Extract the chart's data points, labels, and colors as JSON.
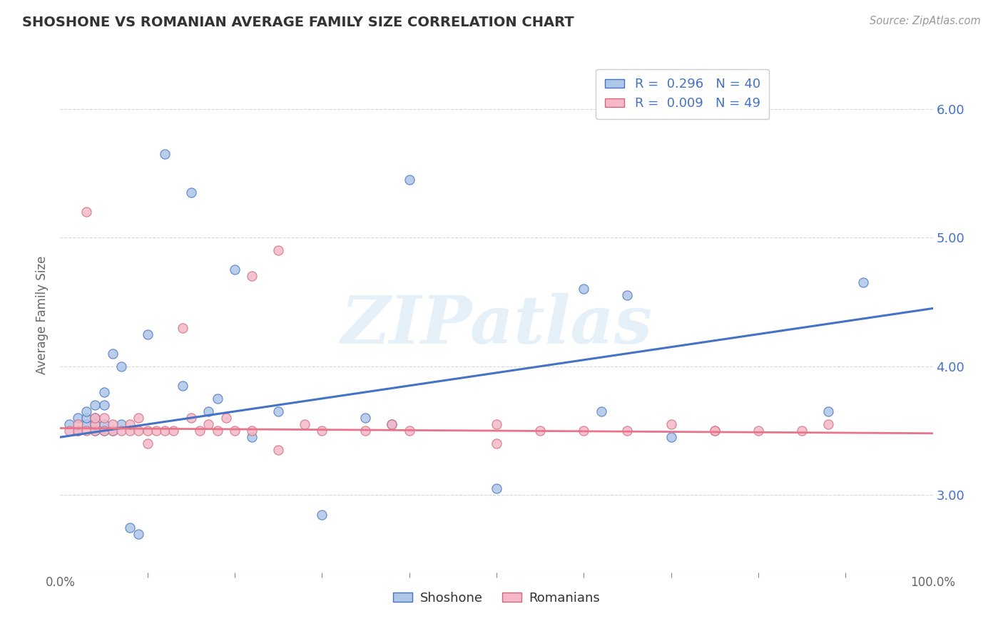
{
  "title": "SHOSHONE VS ROMANIAN AVERAGE FAMILY SIZE CORRELATION CHART",
  "source_text": "Source: ZipAtlas.com",
  "ylabel": "Average Family Size",
  "watermark": "ZIPatlas",
  "legend_label1": "Shoshone",
  "legend_label2": "Romanians",
  "shoshone_color": "#aec6e8",
  "romanian_color": "#f4b8c8",
  "shoshone_line_color": "#4472c4",
  "romanian_line_color": "#e8748a",
  "ylim": [
    2.4,
    6.4
  ],
  "xlim": [
    0.0,
    1.0
  ],
  "yticks_right": [
    3.0,
    4.0,
    5.0,
    6.0
  ],
  "background_color": "#ffffff",
  "grid_color": "#cccccc",
  "shoshone_x": [
    0.01,
    0.02,
    0.02,
    0.03,
    0.03,
    0.03,
    0.04,
    0.04,
    0.04,
    0.04,
    0.05,
    0.05,
    0.05,
    0.05,
    0.06,
    0.06,
    0.07,
    0.07,
    0.08,
    0.09,
    0.1,
    0.12,
    0.14,
    0.15,
    0.17,
    0.18,
    0.2,
    0.22,
    0.25,
    0.3,
    0.35,
    0.38,
    0.4,
    0.5,
    0.6,
    0.62,
    0.65,
    0.7,
    0.88,
    0.92
  ],
  "shoshone_y": [
    3.55,
    3.5,
    3.6,
    3.55,
    3.6,
    3.65,
    3.5,
    3.55,
    3.6,
    3.7,
    3.5,
    3.55,
    3.7,
    3.8,
    3.5,
    4.1,
    3.55,
    4.0,
    2.75,
    2.7,
    4.25,
    5.65,
    3.85,
    5.35,
    3.65,
    3.75,
    4.75,
    3.45,
    3.65,
    2.85,
    3.6,
    3.55,
    5.45,
    3.05,
    4.6,
    3.65,
    4.55,
    3.45,
    3.65,
    4.65
  ],
  "romanian_x": [
    0.01,
    0.02,
    0.02,
    0.03,
    0.03,
    0.04,
    0.04,
    0.04,
    0.05,
    0.05,
    0.06,
    0.06,
    0.07,
    0.08,
    0.08,
    0.09,
    0.09,
    0.1,
    0.11,
    0.12,
    0.13,
    0.14,
    0.15,
    0.16,
    0.17,
    0.18,
    0.19,
    0.2,
    0.22,
    0.22,
    0.25,
    0.28,
    0.3,
    0.35,
    0.38,
    0.4,
    0.5,
    0.55,
    0.6,
    0.65,
    0.7,
    0.75,
    0.8,
    0.85,
    0.88,
    0.1,
    0.25,
    0.5,
    0.75
  ],
  "romanian_y": [
    3.5,
    3.5,
    3.55,
    3.5,
    5.2,
    3.5,
    3.55,
    3.6,
    3.5,
    3.6,
    3.5,
    3.55,
    3.5,
    3.5,
    3.55,
    3.5,
    3.6,
    3.5,
    3.5,
    3.5,
    3.5,
    4.3,
    3.6,
    3.5,
    3.55,
    3.5,
    3.6,
    3.5,
    4.7,
    3.5,
    4.9,
    3.55,
    3.5,
    3.5,
    3.55,
    3.5,
    3.55,
    3.5,
    3.5,
    3.5,
    3.55,
    3.5,
    3.5,
    3.5,
    3.55,
    3.4,
    3.35,
    3.4,
    3.5
  ],
  "shoshone_trend": [
    3.45,
    4.45
  ],
  "romanian_trend": [
    3.52,
    3.48
  ],
  "trend_x": [
    0.0,
    1.0
  ]
}
